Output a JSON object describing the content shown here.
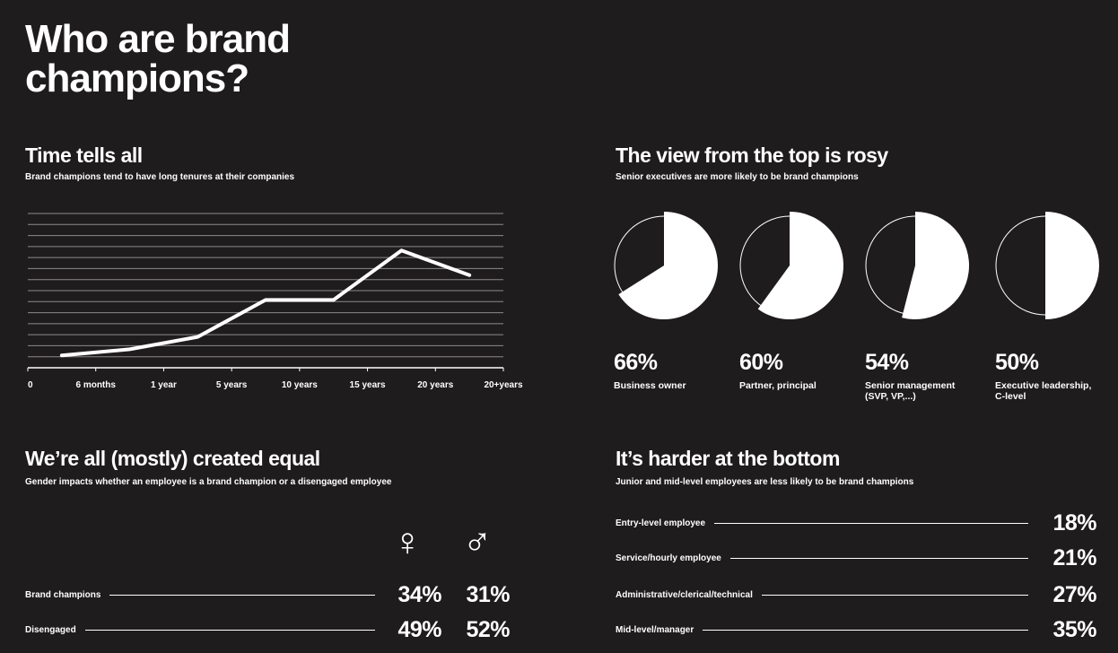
{
  "title": "Who are brand champions?",
  "tenure": {
    "title": "Time tells all",
    "subtitle": "Brand champions tend to have long tenures at their companies"
  },
  "seniority": {
    "title": "The view from the top is rosy",
    "subtitle": "Senior executives are more likely to be brand champions"
  },
  "gender": {
    "title": "We’re all (mostly) created equal",
    "subtitle": "Gender impacts whether an employee is a brand champion or a disengaged employee",
    "female_symbol": "♀",
    "male_symbol": "♂",
    "rows": [
      {
        "label": "Brand champions",
        "female": "34%",
        "male": "31%"
      },
      {
        "label": "Disengaged",
        "female": "49%",
        "male": "52%"
      }
    ]
  },
  "level": {
    "title": "It’s harder at the bottom",
    "subtitle": "Junior and mid-level employees are less likely to be brand champions",
    "rows": [
      {
        "label": "Entry-level employee",
        "value": "18%"
      },
      {
        "label": "Service/hourly employee",
        "value": "21%"
      },
      {
        "label": "Administrative/clerical/technical",
        "value": "27%"
      },
      {
        "label": "Mid-level/manager",
        "value": "35%"
      }
    ]
  },
  "chart_data": [
    {
      "type": "line",
      "title": "Time tells all",
      "subtitle": "Brand champions tend to have long tenures at their companies",
      "x_tick_labels": [
        "0",
        "6 months",
        "1 year",
        "5 years",
        "10 years",
        "15 years",
        "20 years",
        "20+years"
      ],
      "x": [
        "0–6 months",
        "6 months–1 year",
        "1–5 years",
        "5–10 years",
        "10–15 years",
        "15–20 years",
        "20+ years"
      ],
      "values": [
        2,
        3,
        5,
        11,
        11,
        19,
        15
      ],
      "ylim": [
        0,
        25
      ],
      "grid": true,
      "color": "#ffffff"
    },
    {
      "type": "pie",
      "title": "The view from the top is rosy",
      "subtitle": "Senior executives are more likely to be brand champions",
      "items": [
        {
          "value": 66,
          "label": "66%",
          "name": [
            "Business owner"
          ]
        },
        {
          "value": 60,
          "label": "60%",
          "name": [
            "Partner, principal"
          ]
        },
        {
          "value": 54,
          "label": "54%",
          "name": [
            "Senior management",
            "(SVP, VP,...)"
          ]
        },
        {
          "value": 50,
          "label": "50%",
          "name": [
            "Executive leadership,",
            "C-level"
          ]
        }
      ],
      "color": "#ffffff"
    }
  ]
}
